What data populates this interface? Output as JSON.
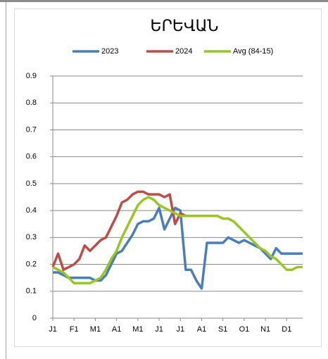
{
  "chart_data": {
    "type": "line",
    "title": "ԵՐԵՎԱՆ",
    "categories": [
      "J1",
      null,
      null,
      null,
      "F1",
      null,
      null,
      null,
      "M1",
      null,
      null,
      null,
      "A1",
      null,
      null,
      null,
      "M1",
      null,
      null,
      null,
      "J1",
      null,
      null,
      null,
      "J1",
      null,
      null,
      null,
      "A1",
      null,
      null,
      null,
      "S1",
      null,
      null,
      null,
      "O1",
      null,
      null,
      null,
      "N1",
      null,
      null,
      null,
      "D1",
      null,
      null,
      null
    ],
    "series": [
      {
        "name": "2023",
        "color": "#4a7ebb",
        "values": [
          0.17,
          0.17,
          0.16,
          0.15,
          0.15,
          0.15,
          0.15,
          0.15,
          0.14,
          0.14,
          0.16,
          0.2,
          0.24,
          0.25,
          0.28,
          0.31,
          0.35,
          0.36,
          0.36,
          0.37,
          0.41,
          0.33,
          0.37,
          0.41,
          0.4,
          0.18,
          0.18,
          0.14,
          0.11,
          0.28,
          0.28,
          0.28,
          0.28,
          0.3,
          0.29,
          0.28,
          0.29,
          0.28,
          0.27,
          0.26,
          0.24,
          0.22,
          0.26,
          0.24,
          0.24,
          0.24,
          0.24,
          0.24
        ]
      },
      {
        "name": "2024",
        "color": "#be4b48",
        "values": [
          0.19,
          0.24,
          0.18,
          0.19,
          0.2,
          0.22,
          0.27,
          0.25,
          0.27,
          0.29,
          0.3,
          0.34,
          0.38,
          0.43,
          0.44,
          0.46,
          0.47,
          0.47,
          0.46,
          0.46,
          0.46,
          0.45,
          0.46,
          0.35,
          0.39,
          0.38,
          null,
          null,
          null,
          null,
          null,
          null,
          null,
          null,
          null,
          null,
          null,
          null,
          null,
          null,
          null,
          null,
          null,
          null,
          null,
          null,
          null,
          null
        ]
      },
      {
        "name": "Avg (84-15)",
        "color": "#98c723",
        "values": [
          0.19,
          0.18,
          0.17,
          0.15,
          0.13,
          0.13,
          0.13,
          0.13,
          0.14,
          0.15,
          0.18,
          0.22,
          0.25,
          0.3,
          0.34,
          0.38,
          0.42,
          0.44,
          0.45,
          0.44,
          0.42,
          0.41,
          0.4,
          0.39,
          0.38,
          0.38,
          0.38,
          0.38,
          0.38,
          0.38,
          0.38,
          0.38,
          0.37,
          0.37,
          0.36,
          0.34,
          0.32,
          0.3,
          0.28,
          0.26,
          0.25,
          0.23,
          0.22,
          0.2,
          0.18,
          0.18,
          0.19,
          0.19
        ]
      }
    ],
    "ylim": [
      0,
      0.9
    ],
    "yticks": [
      0,
      0.1,
      0.2,
      0.3,
      0.4,
      0.5,
      0.6,
      0.7,
      0.8,
      0.9
    ],
    "grid": true
  }
}
